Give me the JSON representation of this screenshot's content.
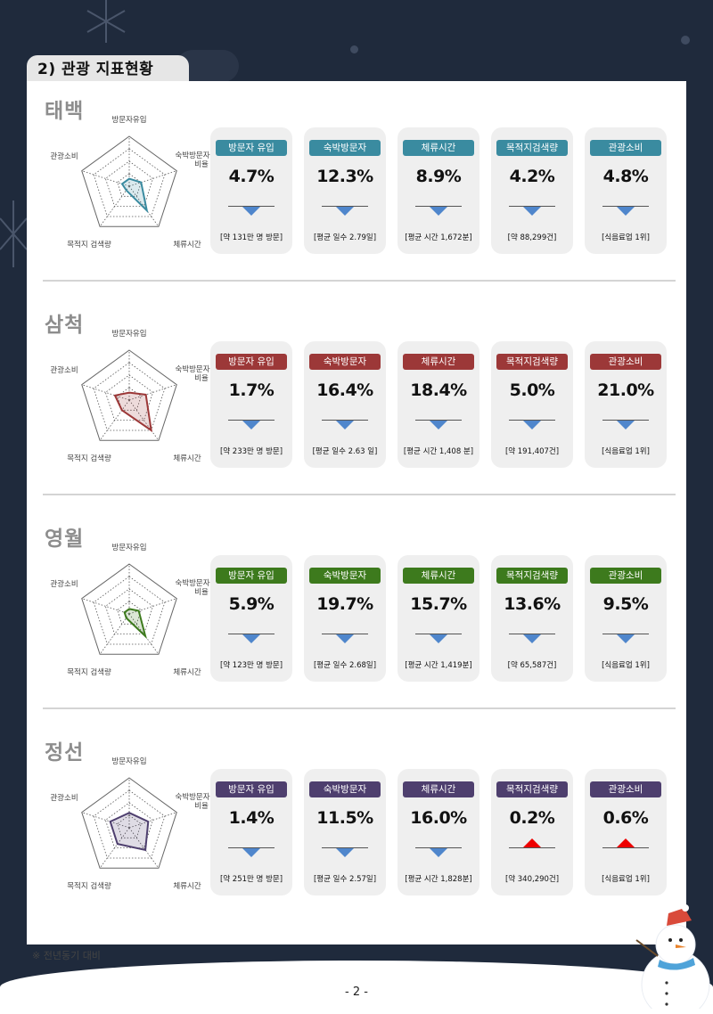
{
  "header": {
    "title": "2) 관광 지표현황"
  },
  "radar_axis_labels": [
    "방문자유입",
    "숙박방문자\n비율",
    "체류시간",
    "목적지 검색량",
    "관광소비"
  ],
  "colors": {
    "taebaek": "#3a8ba0",
    "samcheok": "#9c3838",
    "yeongwol": "#3d7a1d",
    "jeongseon": "#4e3f6e",
    "down_arrow": "#4f86cc",
    "up_arrow": "#ee0000"
  },
  "chart_data": [
    {
      "type": "radar",
      "title": "태백",
      "axes": [
        "방문자유입",
        "숙박방문자 비율",
        "체류시간",
        "목적지 검색량",
        "관광소비"
      ],
      "values": [
        0.15,
        0.25,
        0.6,
        0.1,
        0.15
      ],
      "indicators": [
        {
          "label": "방문자 유입",
          "value": "4.7%",
          "direction": "down",
          "note": "[약 131만 명 방문]"
        },
        {
          "label": "숙박방문자",
          "value": "12.3%",
          "direction": "down",
          "note": "[평균 일수 2.79일]"
        },
        {
          "label": "체류시간",
          "value": "8.9%",
          "direction": "down",
          "note": "[평균 시간 1,672분]"
        },
        {
          "label": "목적지검색량",
          "value": "4.2%",
          "direction": "down",
          "note": "[약 88,299건]"
        },
        {
          "label": "관광소비",
          "value": "4.8%",
          "direction": "down",
          "note": "[식음료업 1위]"
        }
      ]
    },
    {
      "type": "radar",
      "title": "삼척",
      "axes": [
        "방문자유입",
        "숙박방문자 비율",
        "체류시간",
        "목적지 검색량",
        "관광소비"
      ],
      "values": [
        0.15,
        0.35,
        0.75,
        0.25,
        0.3
      ],
      "indicators": [
        {
          "label": "방문자 유입",
          "value": "1.7%",
          "direction": "down",
          "note": "[약 233만 명 방문]"
        },
        {
          "label": "숙박방문자",
          "value": "16.4%",
          "direction": "down",
          "note": "[평균 일수 2.63 일]"
        },
        {
          "label": "체류시간",
          "value": "18.4%",
          "direction": "down",
          "note": "[평균 시간 1,408 분]"
        },
        {
          "label": "목적지검색량",
          "value": "5.0%",
          "direction": "down",
          "note": "[약 191,407건]"
        },
        {
          "label": "관광소비",
          "value": "21.0%",
          "direction": "down",
          "note": "[식음료업 1위]"
        }
      ]
    },
    {
      "type": "radar",
      "title": "영월",
      "axes": [
        "방문자유입",
        "숙박방문자 비율",
        "체류시간",
        "목적지 검색량",
        "관광소비"
      ],
      "values": [
        0.1,
        0.2,
        0.55,
        0.1,
        0.1
      ],
      "indicators": [
        {
          "label": "방문자 유입",
          "value": "5.9%",
          "direction": "down",
          "note": "[약 123만 명 방문]"
        },
        {
          "label": "숙박방문자",
          "value": "19.7%",
          "direction": "down",
          "note": "[평균 일수 2.68일]"
        },
        {
          "label": "체류시간",
          "value": "15.7%",
          "direction": "down",
          "note": "[평균 시간 1,419분]"
        },
        {
          "label": "목적지검색량",
          "value": "13.6%",
          "direction": "down",
          "note": "[약 65,587건]"
        },
        {
          "label": "관광소비",
          "value": "9.5%",
          "direction": "down",
          "note": "[식음료업 1위]"
        }
      ]
    },
    {
      "type": "radar",
      "title": "정선",
      "axes": [
        "방문자유입",
        "숙박방문자 비율",
        "체류시간",
        "목적지 검색량",
        "관광소비"
      ],
      "values": [
        0.3,
        0.4,
        0.55,
        0.4,
        0.4
      ],
      "indicators": [
        {
          "label": "방문자 유입",
          "value": "1.4%",
          "direction": "down",
          "note": "[약 251만 명 방문]"
        },
        {
          "label": "숙박방문자",
          "value": "11.5%",
          "direction": "down",
          "note": "[평균 일수 2.57일]"
        },
        {
          "label": "체류시간",
          "value": "16.0%",
          "direction": "down",
          "note": "[평균 시간 1,828분]"
        },
        {
          "label": "목적지검색량",
          "value": "0.2%",
          "direction": "up",
          "note": "[약 340,290건]"
        },
        {
          "label": "관광소비",
          "value": "0.6%",
          "direction": "up",
          "note": "[식음료업 1위]"
        }
      ]
    }
  ],
  "footnote": "※ 전년동기 대비",
  "page_number": "- 2 -"
}
